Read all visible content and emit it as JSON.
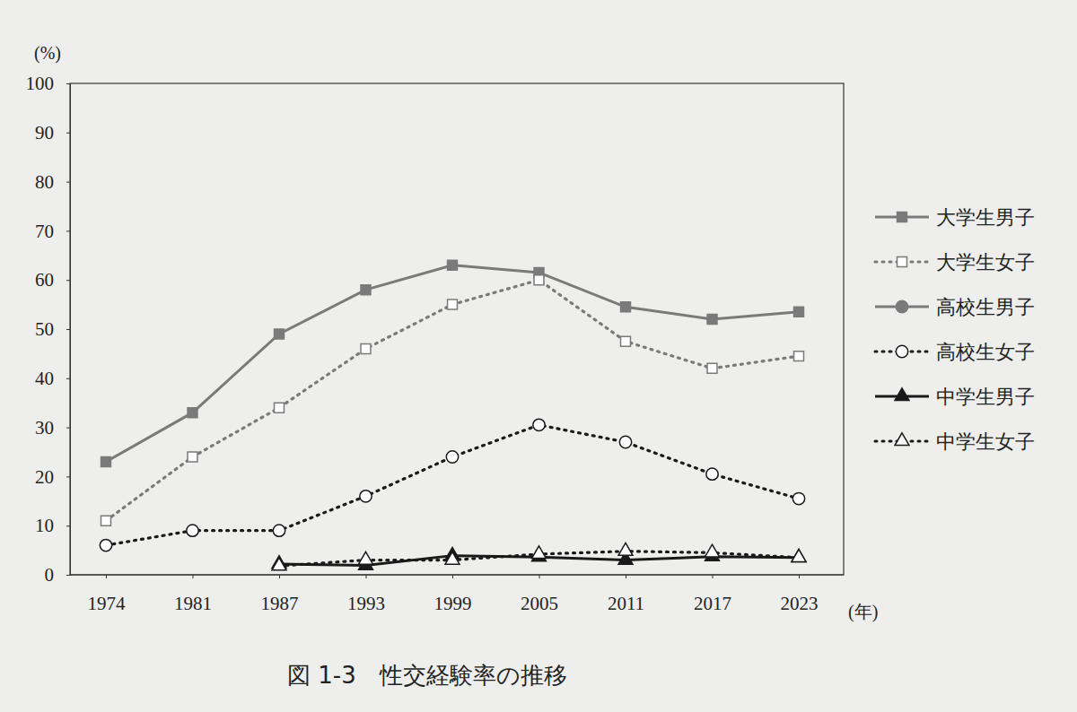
{
  "chart_data": {
    "type": "line",
    "title": "図 1-3　性交経験率の推移",
    "x_label": "(年)",
    "y_label": "(%)",
    "categories": [
      "1974",
      "1981",
      "1987",
      "1993",
      "1999",
      "2005",
      "2011",
      "2017",
      "2023"
    ],
    "ylim": [
      0,
      100
    ],
    "yticks": [
      0,
      10,
      20,
      30,
      40,
      50,
      60,
      70,
      80,
      90,
      100
    ],
    "grid": false,
    "legend": "right",
    "series": [
      {
        "name": "大学生男子",
        "color": "#7a7a7a",
        "marker": "square",
        "line_style": "solid",
        "values": [
          23,
          33,
          49,
          58,
          63,
          61.5,
          54.5,
          52,
          53.5
        ]
      },
      {
        "name": "大学生女子",
        "color": "#7a7a7a",
        "marker": "square-open",
        "line_style": "dotted",
        "values": [
          11,
          24,
          34,
          46,
          55,
          60,
          47.5,
          42,
          44.5
        ]
      },
      {
        "name": "高校生男子",
        "color": "#7a7a7a",
        "marker": "circle",
        "line_style": "solid",
        "values": null
      },
      {
        "name": "高校生女子",
        "color": "#1a1a1a",
        "marker": "circle-open",
        "line_style": "dotted",
        "values": [
          6,
          9,
          9,
          16,
          24,
          30.5,
          27,
          20.5,
          15.5
        ]
      },
      {
        "name": "中学生男子",
        "color": "#1a1a1a",
        "marker": "triangle",
        "line_style": "solid",
        "values": [
          null,
          null,
          2.2,
          1.9,
          3.9,
          3.6,
          3.0,
          3.7,
          3.5
        ]
      },
      {
        "name": "中学生女子",
        "color": "#1a1a1a",
        "marker": "triangle-open",
        "line_style": "dotted",
        "values": [
          null,
          null,
          1.8,
          3.0,
          3.0,
          4.2,
          4.8,
          4.5,
          3.5
        ]
      }
    ]
  }
}
